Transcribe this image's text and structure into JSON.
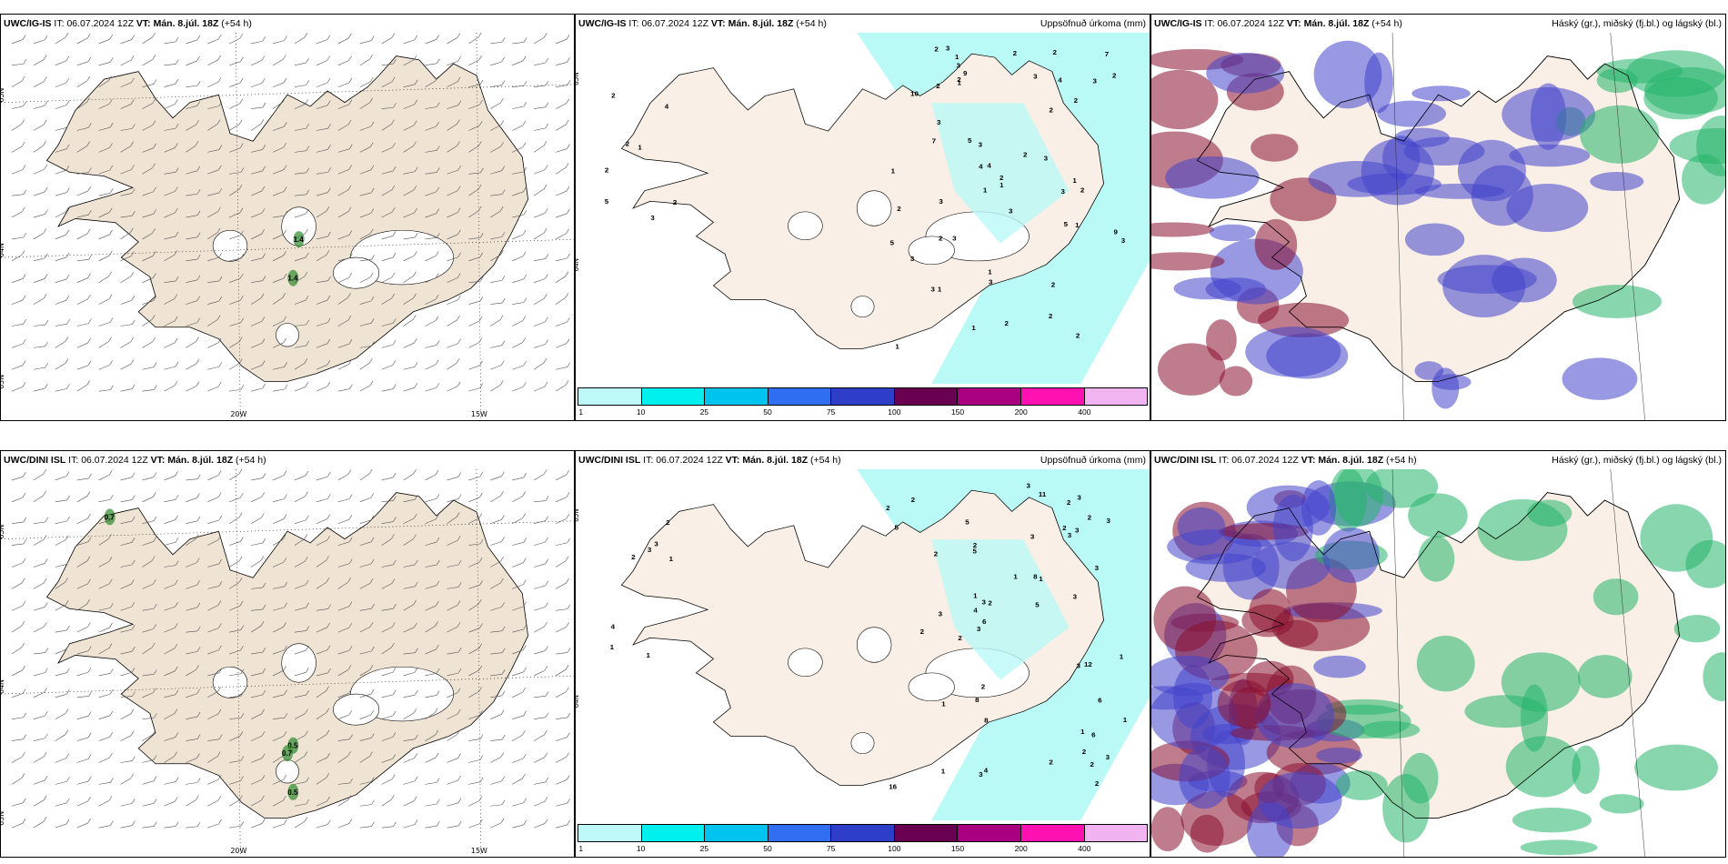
{
  "panels": [
    {
      "model": "UWC/IG-IS",
      "it_label": "IT:",
      "it": "06.07.2024 12Z",
      "vt_label": "VT:",
      "vt": "Mán. 8.júl. 18Z",
      "lead": "(+54 h)",
      "right_title": "",
      "kind": "wind",
      "lat_labels": [
        "65N",
        "64N",
        "63N"
      ],
      "lon_labels": [
        "20W",
        "15W"
      ],
      "precip_labels": [
        "1.4",
        "1.4"
      ]
    },
    {
      "model": "UWC/IG-IS",
      "it_label": "IT:",
      "it": "06.07.2024 12Z",
      "vt_label": "VT:",
      "vt": "Mán. 8.júl. 18Z",
      "lead": "(+54 h)",
      "right_title": "Uppsöfnuð úrkoma (mm)",
      "kind": "precip",
      "lat_labels": [
        "65N",
        "64N"
      ],
      "values": [
        "1",
        "2",
        "2",
        "2",
        "3",
        "4",
        "5",
        "2",
        "5",
        "7",
        "3",
        "5",
        "5",
        "9",
        "3",
        "2",
        "2",
        "3",
        "3",
        "3",
        "2",
        "9",
        "10",
        "1",
        "2",
        "3",
        "2",
        "2",
        "3",
        "3",
        "1",
        "2",
        "1",
        "3",
        "2",
        "3",
        "2",
        "4",
        "3",
        "1",
        "3",
        "1",
        "1",
        "1",
        "2",
        "1",
        "2",
        "1",
        "2",
        "7",
        "1",
        "2",
        "4",
        "2",
        "1",
        "2",
        "3",
        "4",
        "2",
        "2",
        "3",
        "3"
      ]
    },
    {
      "model": "UWC/IG-IS",
      "it_label": "IT:",
      "it": "06.07.2024 12Z",
      "vt_label": "VT:",
      "vt": "Mán. 8.júl. 18Z",
      "lead": "(+54 h)",
      "right_title": "Háský (gr.), miðský (fj.bl.) og lágský (bl.)",
      "kind": "cloud"
    },
    {
      "model": "UWC/DINI ISL",
      "it_label": "IT:",
      "it": "06.07.2024 12Z",
      "vt_label": "VT:",
      "vt": "Mán. 8.júl. 18Z",
      "lead": "(+54 h)",
      "right_title": "",
      "kind": "wind",
      "lat_labels": [
        "65N",
        "64N",
        "63N"
      ],
      "lon_labels": [
        "20W",
        "15W"
      ],
      "precip_labels": [
        "0.7",
        "0.5",
        "0.7",
        "0.5"
      ]
    },
    {
      "model": "UWC/DINI ISL",
      "it_label": "IT:",
      "it": "06.07.2024 12Z",
      "vt_label": "VT:",
      "vt": "Mán. 8.júl. 18Z",
      "lead": "(+54 h)",
      "right_title": "Uppsöfnuð úrkoma (mm)",
      "kind": "precip",
      "lat_labels": [
        "65N",
        "64N"
      ],
      "values": [
        "1",
        "2",
        "1",
        "2",
        "1",
        "3",
        "3",
        "4",
        "5",
        "8",
        "3",
        "5",
        "5",
        "6",
        "8",
        "12",
        "3",
        "2",
        "2",
        "16",
        "3",
        "2",
        "2",
        "1",
        "2",
        "11",
        "3",
        "2",
        "1",
        "3",
        "2",
        "3",
        "5",
        "3",
        "3",
        "2",
        "2",
        "1",
        "2",
        "1",
        "1",
        "2",
        "1",
        "2",
        "2",
        "3",
        "4",
        "3",
        "8",
        "1",
        "1",
        "3",
        "6",
        "3",
        "2",
        "4",
        "6",
        "2",
        "3",
        "3"
      ]
    },
    {
      "model": "UWC/DINI ISL",
      "it_label": "IT:",
      "it": "06.07.2024 12Z",
      "vt_label": "VT:",
      "vt": "Mán. 8.júl. 18Z",
      "lead": "(+54 h)",
      "right_title": "Háský (gr.), miðský (fj.bl.) og lágský (bl.)",
      "kind": "cloud"
    }
  ],
  "legend": {
    "ticks": [
      "1",
      "10",
      "25",
      "50",
      "75",
      "100",
      "150",
      "200",
      "400"
    ],
    "colors": [
      "#bff9f7",
      "#00f0ef",
      "#00c4f0",
      "#2f6ef0",
      "#2f3ec8",
      "#6a0050",
      "#a80080",
      "#ff10b0",
      "#f2b4f0"
    ]
  },
  "colors": {
    "land": "#efe3d4",
    "precip_shade": "#b9f9f6",
    "high_cloud": "#24b56a",
    "mid_cloud": "#8a1030",
    "low_cloud": "#4444cc"
  }
}
